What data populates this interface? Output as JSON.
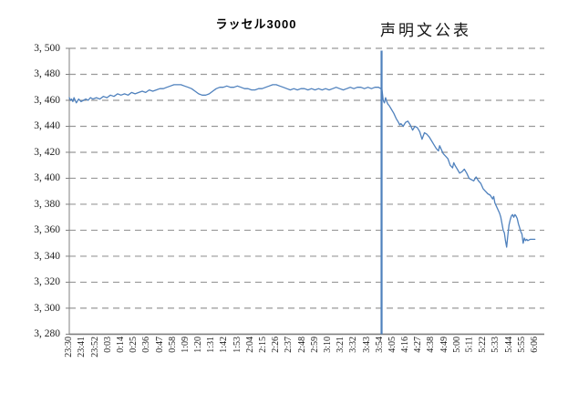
{
  "chart_data": {
    "type": "line",
    "title": "ラッセル3000",
    "legend": "none",
    "grid": "horizontal-dashed",
    "x_unit": "time (JST), labels every 11 minutes from 23:30 to 6:06",
    "x_axis_max_min": 404,
    "x_tick_step_min": 11,
    "x_tick_labels": [
      "23:30",
      "23:41",
      "23:52",
      "0:03",
      "0:14",
      "0:25",
      "0:36",
      "0:47",
      "0:58",
      "1:09",
      "1:20",
      "1:31",
      "1:42",
      "1:53",
      "2:04",
      "2:15",
      "2:26",
      "2:37",
      "2:48",
      "2:59",
      "3:10",
      "3:21",
      "3:32",
      "3:43",
      "3:54",
      "4:05",
      "4:16",
      "4:27",
      "4:38",
      "4:49",
      "5:00",
      "5:11",
      "5:22",
      "5:33",
      "5:44",
      "5:55",
      "6:06"
    ],
    "ylim": [
      3280,
      3500
    ],
    "y_tick_values": [
      3500,
      3480,
      3460,
      3440,
      3420,
      3400,
      3380,
      3360,
      3340,
      3320,
      3300,
      3280
    ],
    "y_tick_labels": [
      "3, 500",
      "3, 480",
      "3, 460",
      "3, 440",
      "3, 420",
      "3, 400",
      "3, 380",
      "3, 360",
      "3, 340",
      "3, 320",
      "3, 300",
      "3, 280"
    ],
    "annotation": {
      "label": "声明文公表",
      "time_min": 265.6,
      "time_clock": "3:56"
    },
    "colors": {
      "line": "#4f81bd",
      "annotation_line": "#4f81bd",
      "grid": "#999999",
      "axis": "#808080",
      "text": "#222222"
    },
    "series": [
      {
        "name": "ラッセル3000",
        "points": [
          [
            0,
            3462
          ],
          [
            1,
            3460
          ],
          [
            2,
            3461
          ],
          [
            3,
            3459
          ],
          [
            4,
            3462
          ],
          [
            6,
            3458
          ],
          [
            8,
            3461
          ],
          [
            10,
            3459
          ],
          [
            12,
            3460
          ],
          [
            14,
            3461
          ],
          [
            16,
            3460
          ],
          [
            18,
            3462
          ],
          [
            20,
            3461
          ],
          [
            23,
            3462
          ],
          [
            26,
            3461
          ],
          [
            29,
            3463
          ],
          [
            32,
            3462
          ],
          [
            35,
            3464
          ],
          [
            38,
            3463
          ],
          [
            41,
            3465
          ],
          [
            44,
            3464
          ],
          [
            47,
            3465
          ],
          [
            50,
            3464
          ],
          [
            53,
            3466
          ],
          [
            56,
            3465
          ],
          [
            59,
            3466
          ],
          [
            62,
            3467
          ],
          [
            65,
            3466
          ],
          [
            68,
            3468
          ],
          [
            71,
            3467
          ],
          [
            74,
            3468
          ],
          [
            77,
            3469
          ],
          [
            80,
            3469
          ],
          [
            83,
            3470
          ],
          [
            86,
            3471
          ],
          [
            89,
            3472
          ],
          [
            92,
            3472
          ],
          [
            95,
            3472
          ],
          [
            98,
            3471
          ],
          [
            101,
            3470
          ],
          [
            104,
            3469
          ],
          [
            107,
            3467
          ],
          [
            110,
            3465
          ],
          [
            113,
            3464
          ],
          [
            116,
            3464
          ],
          [
            119,
            3465
          ],
          [
            122,
            3467
          ],
          [
            125,
            3469
          ],
          [
            128,
            3470
          ],
          [
            131,
            3470
          ],
          [
            134,
            3471
          ],
          [
            137,
            3470
          ],
          [
            140,
            3470
          ],
          [
            143,
            3471
          ],
          [
            146,
            3470
          ],
          [
            149,
            3469
          ],
          [
            152,
            3469
          ],
          [
            155,
            3468
          ],
          [
            158,
            3468
          ],
          [
            161,
            3469
          ],
          [
            164,
            3469
          ],
          [
            167,
            3470
          ],
          [
            170,
            3471
          ],
          [
            173,
            3472
          ],
          [
            176,
            3472
          ],
          [
            179,
            3471
          ],
          [
            182,
            3470
          ],
          [
            185,
            3469
          ],
          [
            188,
            3468
          ],
          [
            191,
            3469
          ],
          [
            194,
            3468
          ],
          [
            197,
            3469
          ],
          [
            200,
            3469
          ],
          [
            203,
            3468
          ],
          [
            206,
            3469
          ],
          [
            209,
            3468
          ],
          [
            212,
            3469
          ],
          [
            215,
            3468
          ],
          [
            218,
            3469
          ],
          [
            221,
            3468
          ],
          [
            224,
            3469
          ],
          [
            227,
            3470
          ],
          [
            230,
            3469
          ],
          [
            233,
            3468
          ],
          [
            236,
            3469
          ],
          [
            239,
            3470
          ],
          [
            242,
            3469
          ],
          [
            245,
            3470
          ],
          [
            248,
            3470
          ],
          [
            251,
            3469
          ],
          [
            254,
            3470
          ],
          [
            257,
            3469
          ],
          [
            260,
            3470
          ],
          [
            263,
            3470
          ],
          [
            265,
            3469
          ],
          [
            266,
            3468
          ],
          [
            267,
            3460
          ],
          [
            268,
            3458
          ],
          [
            269,
            3462
          ],
          [
            270,
            3459
          ],
          [
            271,
            3457
          ],
          [
            272,
            3456
          ],
          [
            274,
            3453
          ],
          [
            276,
            3450
          ],
          [
            278,
            3446
          ],
          [
            280,
            3443
          ],
          [
            281,
            3441
          ],
          [
            282,
            3442
          ],
          [
            283,
            3441
          ],
          [
            284,
            3440
          ],
          [
            286,
            3443
          ],
          [
            288,
            3444
          ],
          [
            290,
            3441
          ],
          [
            292,
            3437
          ],
          [
            294,
            3440
          ],
          [
            296,
            3439
          ],
          [
            298,
            3436
          ],
          [
            300,
            3430
          ],
          [
            302,
            3435
          ],
          [
            304,
            3434
          ],
          [
            306,
            3432
          ],
          [
            308,
            3429
          ],
          [
            310,
            3426
          ],
          [
            312,
            3423
          ],
          [
            314,
            3421
          ],
          [
            315,
            3425
          ],
          [
            316,
            3423
          ],
          [
            318,
            3419
          ],
          [
            320,
            3417
          ],
          [
            322,
            3415
          ],
          [
            324,
            3410
          ],
          [
            326,
            3408
          ],
          [
            327,
            3412
          ],
          [
            328,
            3410
          ],
          [
            330,
            3407
          ],
          [
            332,
            3404
          ],
          [
            334,
            3405
          ],
          [
            336,
            3407
          ],
          [
            338,
            3404
          ],
          [
            340,
            3400
          ],
          [
            342,
            3399
          ],
          [
            344,
            3398
          ],
          [
            346,
            3401
          ],
          [
            348,
            3398
          ],
          [
            350,
            3396
          ],
          [
            352,
            3392
          ],
          [
            354,
            3390
          ],
          [
            356,
            3388
          ],
          [
            358,
            3387
          ],
          [
            360,
            3384
          ],
          [
            361,
            3386
          ],
          [
            362,
            3381
          ],
          [
            364,
            3377
          ],
          [
            366,
            3373
          ],
          [
            367,
            3370
          ],
          [
            368,
            3365
          ],
          [
            369,
            3360
          ],
          [
            370,
            3358
          ],
          [
            371,
            3352
          ],
          [
            372,
            3347
          ],
          [
            373,
            3356
          ],
          [
            374,
            3364
          ],
          [
            375,
            3368
          ],
          [
            376,
            3371
          ],
          [
            377,
            3372
          ],
          [
            378,
            3370
          ],
          [
            379,
            3372
          ],
          [
            380,
            3371
          ],
          [
            381,
            3369
          ],
          [
            382,
            3365
          ],
          [
            383,
            3362
          ],
          [
            384,
            3359
          ],
          [
            385,
            3357
          ],
          [
            386,
            3350
          ],
          [
            387,
            3354
          ],
          [
            388,
            3352
          ],
          [
            389,
            3353
          ],
          [
            390,
            3352
          ],
          [
            392,
            3353
          ],
          [
            394,
            3353
          ],
          [
            396,
            3353
          ]
        ]
      }
    ]
  }
}
